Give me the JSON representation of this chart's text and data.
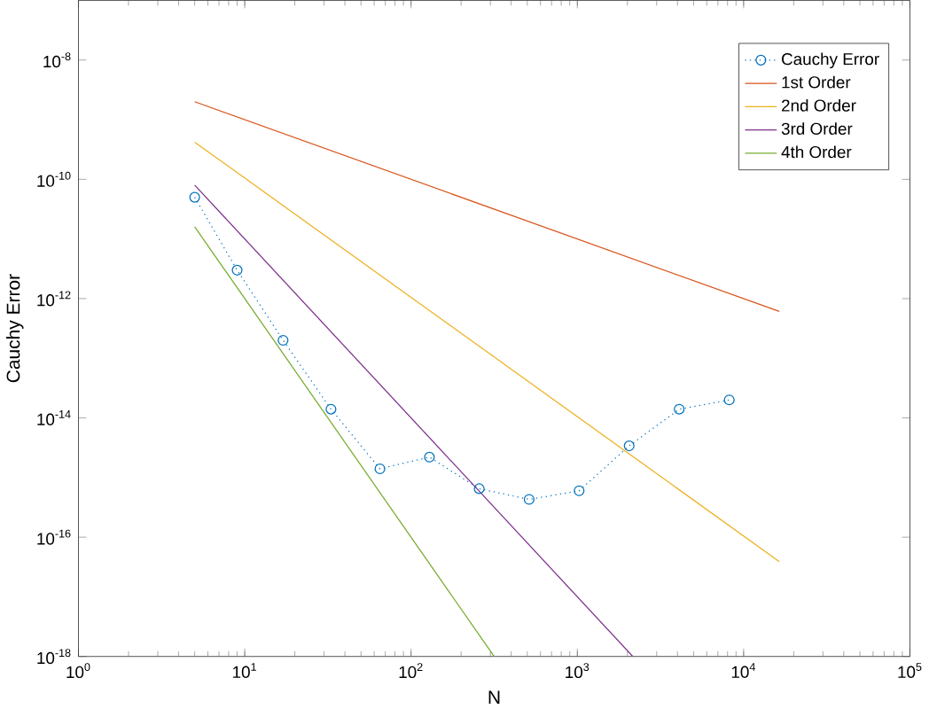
{
  "chart_data": {
    "type": "line",
    "xlabel": "N",
    "ylabel": "Cauchy Error",
    "log": "xy",
    "grid": false,
    "legend": "top right",
    "xlim": [
      1,
      100000
    ],
    "ylim": [
      1e-18,
      1e-07
    ],
    "xticks": [
      {
        "value": 1,
        "label": "10$^{0}$"
      },
      {
        "value": 10,
        "label": "10$^{1}$"
      },
      {
        "value": 100,
        "label": "10$^{2}$"
      },
      {
        "value": 1000,
        "label": "10$^{3}$"
      },
      {
        "value": 10000,
        "label": "10$^{4}$"
      },
      {
        "value": 100000,
        "label": "10$^{5}$"
      }
    ],
    "yticks": [
      {
        "value": 1e-18,
        "label": "10$^{-18}$"
      },
      {
        "value": 1e-16,
        "label": "10$^{-16}$"
      },
      {
        "value": 1e-14,
        "label": "10$^{-14}$"
      },
      {
        "value": 1e-12,
        "label": "10$^{-12}$"
      },
      {
        "value": 1e-10,
        "label": "10$^{-10}$"
      },
      {
        "value": 1e-08,
        "label": "10$^{-8}$"
      }
    ],
    "series": [
      {
        "name": "Cauchy Error",
        "color": "#0072bd",
        "marker": "circle",
        "line_style": "dotted",
        "x": [
          5,
          9,
          17,
          33,
          65,
          129,
          257,
          513,
          1025,
          2049,
          4097,
          8193
        ],
        "values": [
          5e-11,
          3e-12,
          2e-13,
          1.4e-14,
          1.4e-15,
          2.2e-15,
          6.5e-16,
          4.3e-16,
          6e-16,
          3.4e-15,
          1.4e-14,
          2e-14
        ]
      },
      {
        "name": "1st Order",
        "color": "#d95319",
        "marker": "none",
        "line_style": "solid",
        "x": [
          5,
          16385
        ],
        "values": [
          2e-09,
          6.1e-13
        ]
      },
      {
        "name": "2nd Order",
        "color": "#edb120",
        "marker": "none",
        "line_style": "solid",
        "x": [
          5,
          16385
        ],
        "values": [
          4.2e-10,
          3.9e-17
        ]
      },
      {
        "name": "3rd Order",
        "color": "#7e2f8e",
        "marker": "none",
        "line_style": "solid",
        "x": [
          5,
          2155
        ],
        "values": [
          8e-11,
          1e-18
        ]
      },
      {
        "name": "4th Order",
        "color": "#77ac30",
        "marker": "none",
        "line_style": "solid",
        "x": [
          5,
          316
        ],
        "values": [
          1.6e-11,
          1e-18
        ]
      }
    ]
  }
}
